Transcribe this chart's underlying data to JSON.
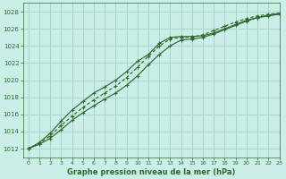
{
  "title": "Graphe pression niveau de la mer (hPa)",
  "bg_color": "#cceee8",
  "plot_bg_color": "#cceee8",
  "grid_color": "#aad4cc",
  "line_color": "#2d6b2d",
  "xlim": [
    -0.5,
    23
  ],
  "ylim": [
    1011.0,
    1029.0
  ],
  "xticks": [
    0,
    1,
    2,
    3,
    4,
    5,
    6,
    7,
    8,
    9,
    10,
    11,
    12,
    13,
    14,
    15,
    16,
    17,
    18,
    19,
    20,
    21,
    22,
    23
  ],
  "yticks": [
    1012,
    1014,
    1016,
    1018,
    1020,
    1022,
    1024,
    1026,
    1028
  ],
  "series1_x": [
    0,
    1,
    2,
    3,
    4,
    5,
    6,
    7,
    8,
    9,
    10,
    11,
    12,
    13,
    14,
    15,
    16,
    17,
    18,
    19,
    20,
    21,
    22,
    23
  ],
  "series1_y": [
    1012.0,
    1012.7,
    1013.8,
    1015.2,
    1016.5,
    1017.5,
    1018.5,
    1019.2,
    1020.0,
    1021.0,
    1022.2,
    1023.0,
    1024.3,
    1025.0,
    1025.1,
    1025.1,
    1025.2,
    1025.5,
    1026.0,
    1026.5,
    1027.0,
    1027.3,
    1027.5,
    1027.7
  ],
  "series2_x": [
    0,
    1,
    2,
    3,
    4,
    5,
    6,
    7,
    8,
    9,
    10,
    11,
    12,
    13,
    14,
    15,
    16,
    17,
    18,
    19,
    20,
    21,
    22,
    23
  ],
  "series2_y": [
    1012.0,
    1012.6,
    1013.5,
    1014.7,
    1015.8,
    1016.8,
    1017.7,
    1018.5,
    1019.3,
    1020.3,
    1021.5,
    1022.8,
    1024.0,
    1024.8,
    1025.0,
    1025.0,
    1025.3,
    1025.8,
    1026.3,
    1026.8,
    1027.2,
    1027.5,
    1027.7,
    1027.8
  ],
  "series3_x": [
    0,
    1,
    2,
    3,
    4,
    5,
    6,
    7,
    8,
    9,
    10,
    11,
    12,
    13,
    14,
    15,
    16,
    17,
    18,
    19,
    20,
    21,
    22,
    23
  ],
  "series3_y": [
    1012.0,
    1012.5,
    1013.2,
    1014.2,
    1015.3,
    1016.2,
    1017.0,
    1017.8,
    1018.5,
    1019.4,
    1020.5,
    1021.8,
    1023.0,
    1024.0,
    1024.7,
    1024.8,
    1025.0,
    1025.4,
    1025.9,
    1026.4,
    1026.9,
    1027.3,
    1027.6,
    1027.8
  ]
}
